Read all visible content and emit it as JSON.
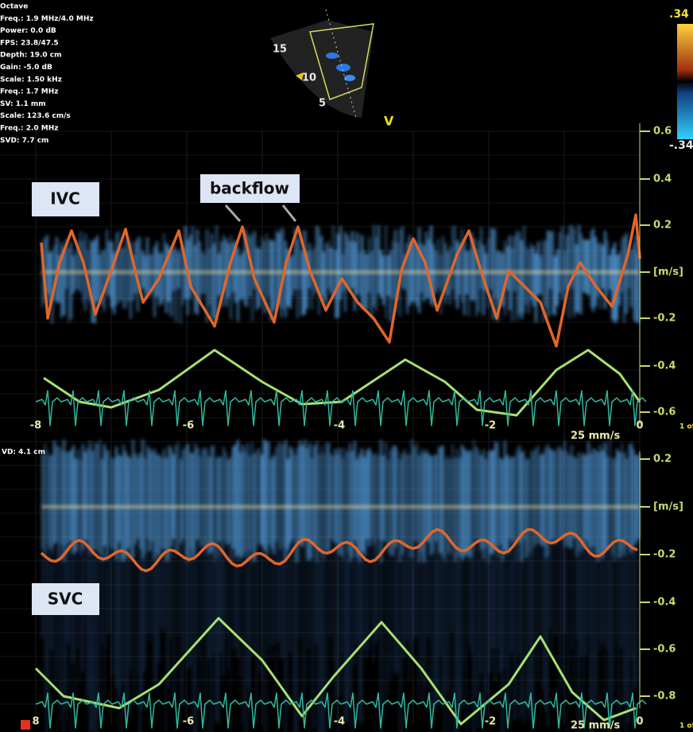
{
  "settings": [
    "Octave",
    "Freq.: 1.9 MHz/4.0 MHz",
    "Power: 0.0 dB",
    "FPS: 23.8/47.5",
    "Depth: 19.0 cm",
    "Gain: -5.0 dB",
    "Scale: 1.50 kHz",
    "Freq.: 1.7 MHz",
    "SV: 1.1 mm",
    "Scale: 123.6 cm/s",
    "Freq.: 2.0 MHz",
    "SVD: 7.7 cm"
  ],
  "sector": {
    "depth_labels": [
      "15",
      "10",
      "5"
    ],
    "marker": "V",
    "color_scale_top": ".34",
    "color_scale_bottom": "-.34"
  },
  "top_panel": {
    "label": "IVC",
    "annotation": "backflow",
    "velocity_ticks": [
      "0.6",
      "0.4",
      "0.2",
      "[m/s]",
      "-0.2",
      "-0.4",
      "-0.6"
    ],
    "time_ticks": [
      "-8",
      "-6",
      "-4",
      "-2",
      "0"
    ],
    "sweep": "25 mm/s",
    "page": "1 of"
  },
  "bottom_panel": {
    "label": "SVC",
    "header": "VD: 4.1 cm",
    "velocity_ticks": [
      "0.2",
      "[m/s]",
      "-0.2",
      "-0.4",
      "-0.6",
      "-0.8"
    ],
    "time_ticks": [
      "8",
      "-6",
      "-4",
      "-2",
      "0"
    ],
    "sweep": "25 mm/s",
    "page": "1 of"
  }
}
